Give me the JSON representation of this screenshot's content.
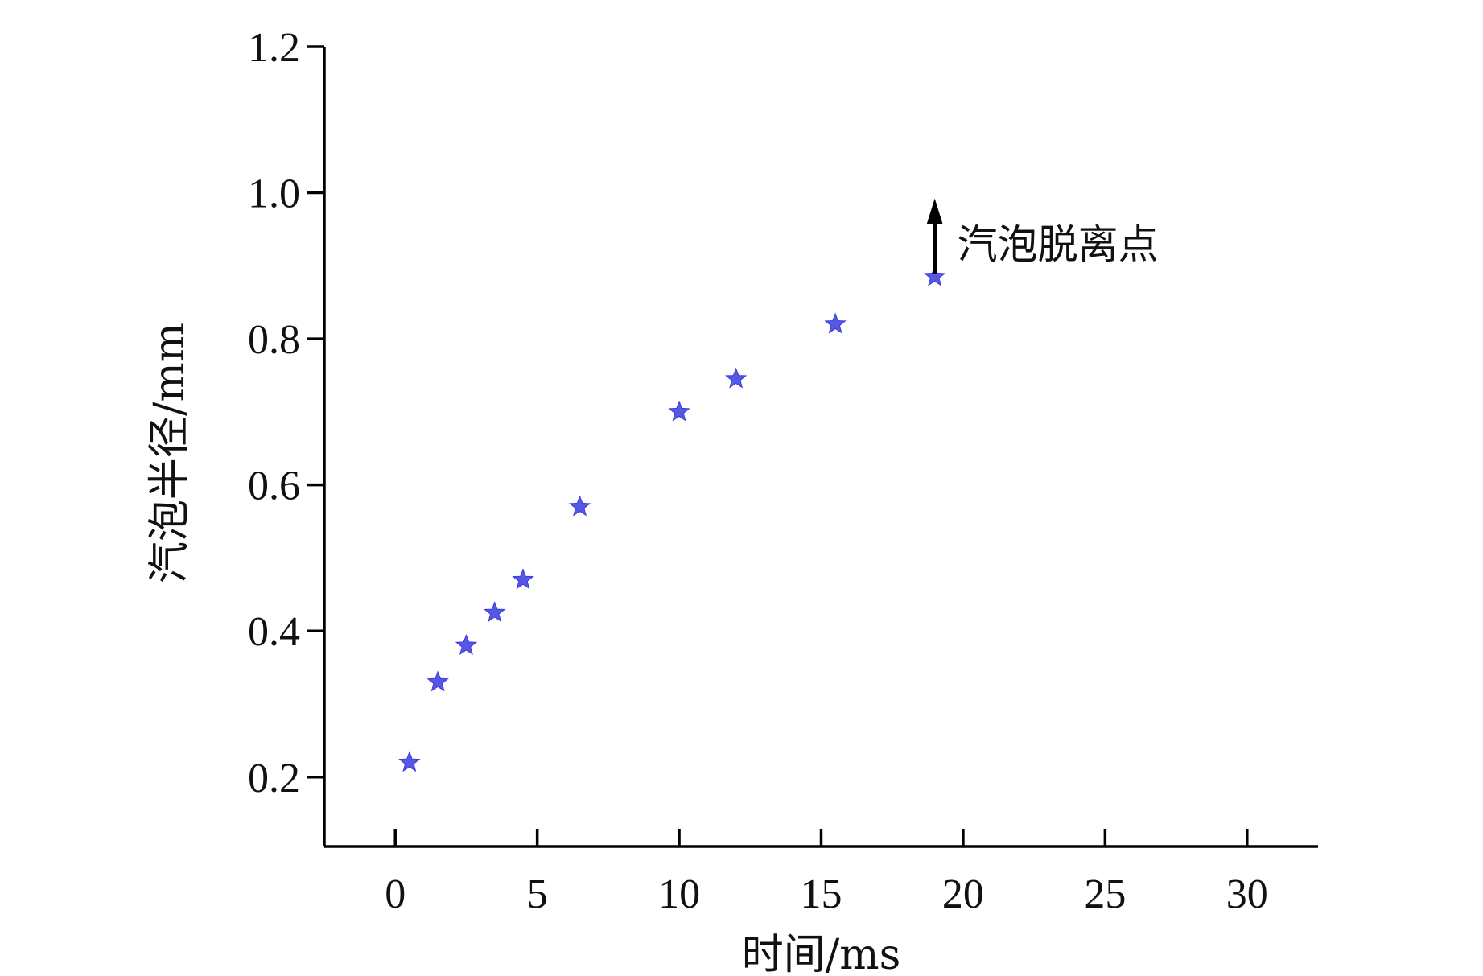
{
  "chart_data": {
    "type": "scatter",
    "xlabel": "时间/ms",
    "ylabel": "汽泡半径/mm",
    "xlim": [
      -2.5,
      32.5
    ],
    "ylim": [
      0.105,
      1.2
    ],
    "x_ticks": [
      0,
      5,
      10,
      15,
      20,
      25,
      30
    ],
    "x_tick_labels": [
      "0",
      "5",
      "10",
      "15",
      "20",
      "25",
      "30"
    ],
    "y_ticks": [
      0.2,
      0.4,
      0.6,
      0.8,
      1.0,
      1.2
    ],
    "y_tick_labels": [
      "0.2",
      "0.4",
      "0.6",
      "0.8",
      "1.0",
      "1.2"
    ],
    "grid": false,
    "series": [
      {
        "marker": "star",
        "color": "#3a3ae0",
        "points": [
          {
            "x": 0.5,
            "y": 0.22
          },
          {
            "x": 1.5,
            "y": 0.33
          },
          {
            "x": 2.5,
            "y": 0.38
          },
          {
            "x": 3.5,
            "y": 0.425
          },
          {
            "x": 4.5,
            "y": 0.47
          },
          {
            "x": 6.5,
            "y": 0.57
          },
          {
            "x": 10.0,
            "y": 0.7
          },
          {
            "x": 12.0,
            "y": 0.745
          },
          {
            "x": 15.5,
            "y": 0.82
          },
          {
            "x": 19.0,
            "y": 0.885
          }
        ]
      }
    ],
    "annotation": {
      "text": "汽泡脱离点",
      "at_x": 19.0,
      "arrow_from_y": 0.885,
      "arrow_to_y": 0.99
    }
  }
}
